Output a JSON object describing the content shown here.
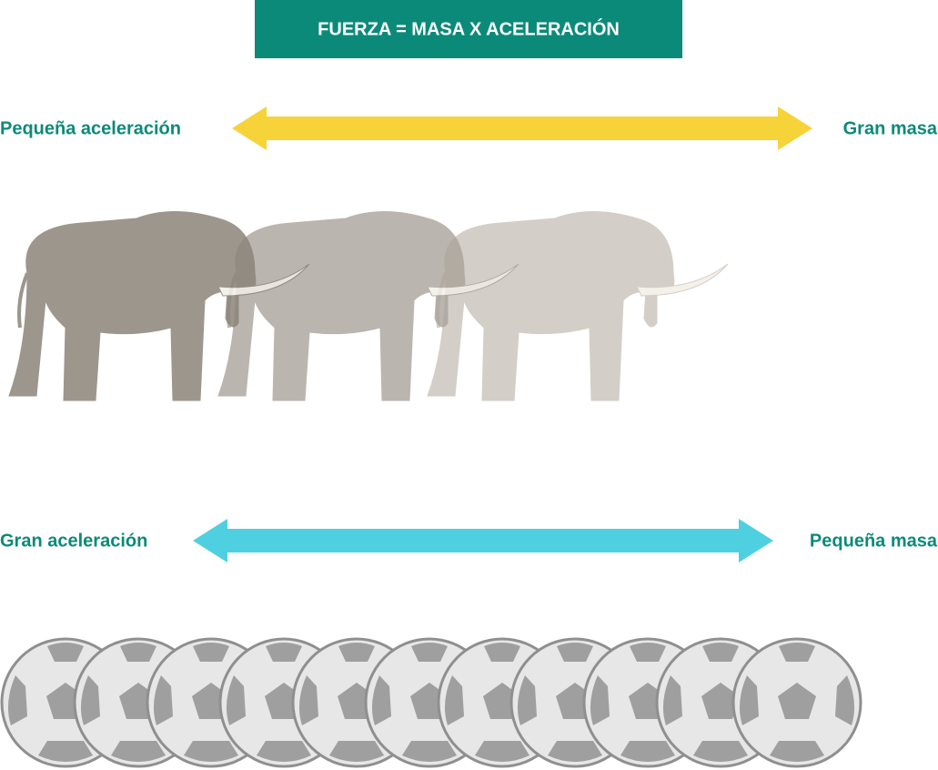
{
  "header": {
    "title": "FUERZA = MASA X ACELERACIÓN"
  },
  "rows": [
    {
      "left_label": "Pequeña aceleración",
      "right_label": "Gran masa"
    },
    {
      "left_label": "Gran aceleración",
      "right_label": "Pequeña masa"
    }
  ]
}
